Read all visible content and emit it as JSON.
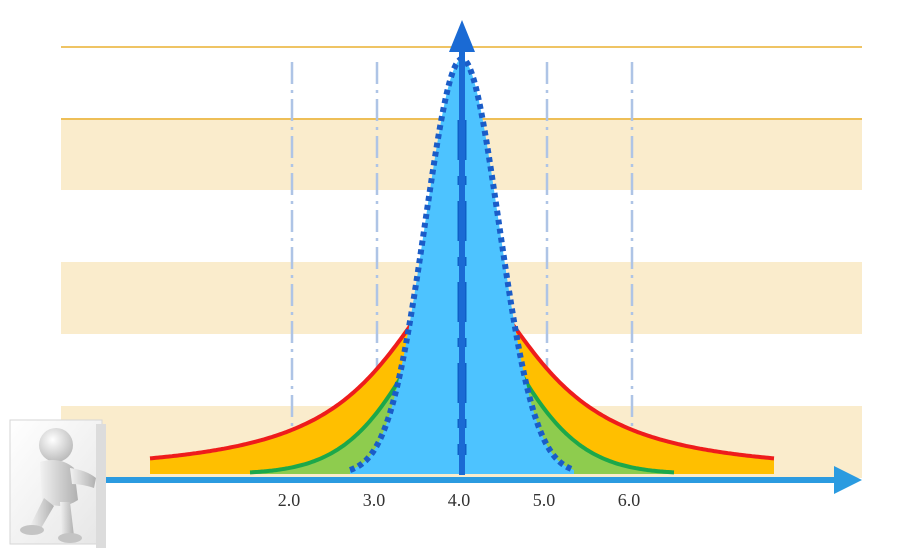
{
  "colors": {
    "band": "#faeccc",
    "band_line": "#eab030",
    "guide_line": "#aec4e6",
    "axis": "#2b9be0",
    "red_curve": "#ee1c1c",
    "orange_fill": "#ffbf00",
    "green_curve": "#1ca84a",
    "green_fill": "#8ecc4e",
    "blue_fill": "#4dc3ff",
    "blue_dotted": "#1a5cc8",
    "center_dash": "#0e5fc6",
    "arrow": "#1a6ad4"
  },
  "icons": [
    "person-pushing-figure-icon"
  ],
  "chart_data": {
    "type": "area",
    "x_tick_labels": [
      "2.0",
      "3.0",
      "4.0",
      "5.0",
      "6.0"
    ],
    "x_tick_values": [
      2.0,
      3.0,
      4.0,
      5.0,
      6.0
    ],
    "center": 4.0,
    "series": [
      {
        "color": "red",
        "fill": "orange",
        "spread": "widest"
      },
      {
        "color": "green",
        "fill": "green",
        "spread": "medium"
      },
      {
        "color": "blue-dotted",
        "fill": "light-blue",
        "spread": "narrowest"
      }
    ],
    "guide_lines_at": [
      2.0,
      3.0,
      5.0,
      6.0
    ],
    "center_line_at": 4.0,
    "grid": "alternating horizontal bands",
    "legend": "none"
  }
}
